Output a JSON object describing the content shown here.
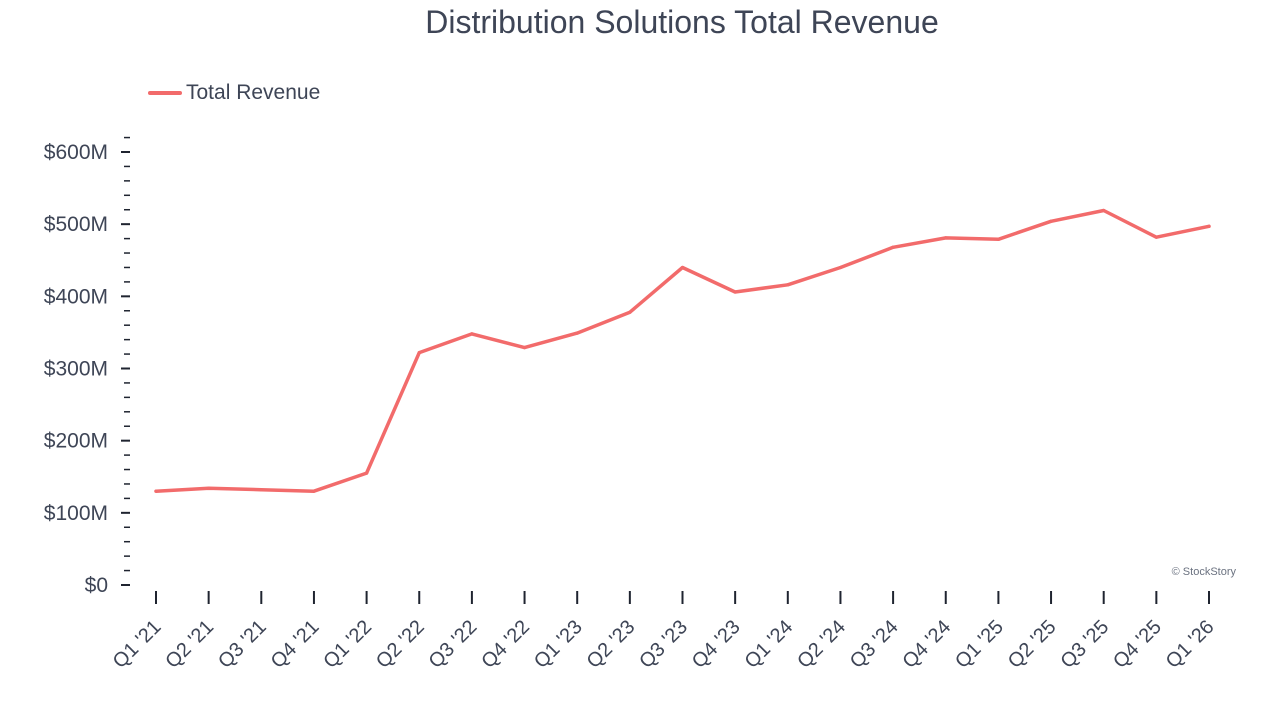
{
  "chart_data": {
    "type": "line",
    "title": "Distribution Solutions Total Revenue",
    "xlabel": "",
    "ylabel": "",
    "categories": [
      "Q1 '21",
      "Q2 '21",
      "Q3 '21",
      "Q4 '21",
      "Q1 '22",
      "Q2 '22",
      "Q3 '22",
      "Q4 '22",
      "Q1 '23",
      "Q2 '23",
      "Q3 '23",
      "Q4 '23",
      "Q1 '24",
      "Q2 '24",
      "Q3 '24",
      "Q4 '24",
      "Q1 '25",
      "Q2 '25",
      "Q3 '25",
      "Q4 '25",
      "Q1 '26"
    ],
    "series": [
      {
        "name": "Total Revenue",
        "color": "#f26b6b",
        "values": [
          130,
          134,
          132,
          130,
          155,
          322,
          348,
          329,
          349,
          378,
          440,
          406,
          416,
          440,
          468,
          481,
          479,
          504,
          519,
          482,
          497
        ]
      }
    ],
    "ylim": [
      0,
      600
    ],
    "yticks": [
      0,
      100,
      200,
      300,
      400,
      500,
      600
    ],
    "ytick_labels": [
      "$0",
      "$100M",
      "$200M",
      "$300M",
      "$400M",
      "$500M",
      "$600M"
    ],
    "y_unit": "millions USD",
    "grid": false,
    "legend_position": "top-left",
    "credit": "© StockStory"
  }
}
